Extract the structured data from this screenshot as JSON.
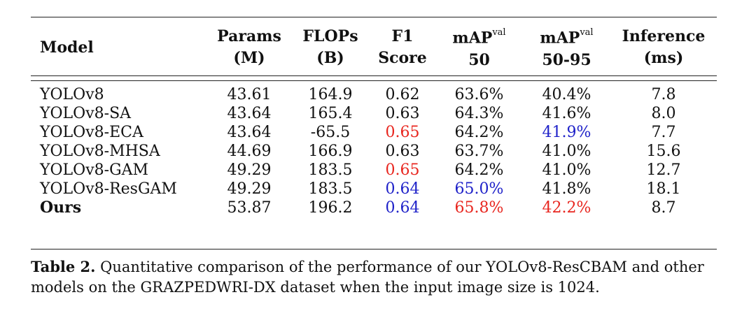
{
  "table": {
    "headers": [
      {
        "line1": "Model",
        "line2": "",
        "sup": ""
      },
      {
        "line1": "Params",
        "line2": "(M)",
        "sup": ""
      },
      {
        "line1": "FLOPs",
        "line2": "(B)",
        "sup": ""
      },
      {
        "line1": "F1",
        "line2": "Score",
        "sup": ""
      },
      {
        "line1": "mAP",
        "line2": "50",
        "sup": "val"
      },
      {
        "line1": "mAP",
        "line2": "50-95",
        "sup": "val"
      },
      {
        "line1": "Inference",
        "line2": "(ms)",
        "sup": ""
      }
    ],
    "rows": [
      {
        "model": "YOLOv8",
        "params": "43.61",
        "flops": "164.9",
        "f1": "0.62",
        "map50": "63.6%",
        "map5095": "40.4%",
        "inference": "7.8"
      },
      {
        "model": "YOLOv8-SA",
        "params": "43.64",
        "flops": "165.4",
        "f1": "0.63",
        "map50": "64.3%",
        "map5095": "41.6%",
        "inference": "8.0"
      },
      {
        "model": "YOLOv8-ECA",
        "params": "43.64",
        "flops": "-65.5",
        "f1": "0.65",
        "map50": "64.2%",
        "map5095": "41.9%",
        "inference": "7.7"
      },
      {
        "model": "YOLOv8-MHSA",
        "params": "44.69",
        "flops": "166.9",
        "f1": "0.63",
        "map50": "63.7%",
        "map5095": "41.0%",
        "inference": "15.6"
      },
      {
        "model": "YOLOv8-GAM",
        "params": "49.29",
        "flops": "183.5",
        "f1": "0.65",
        "map50": "64.2%",
        "map5095": "41.0%",
        "inference": "12.7"
      },
      {
        "model": "YOLOv8-ResGAM",
        "params": "49.29",
        "flops": "183.5",
        "f1": "0.64",
        "map50": "65.0%",
        "map5095": "41.8%",
        "inference": "18.1"
      },
      {
        "model": "Ours",
        "params": "53.87",
        "flops": "196.2",
        "f1": "0.64",
        "map50": "65.8%",
        "map5095": "42.2%",
        "inference": "8.7"
      }
    ]
  },
  "highlight_colors": {
    "best": "#e8261f",
    "second": "#1f22c9"
  },
  "caption": {
    "label": "Table 2.",
    "text": " Quantitative comparison of the performance of our YOLOv8-ResCBAM and other models on the GRAZPEDWRI-DX dataset when the input image size is 1024."
  }
}
